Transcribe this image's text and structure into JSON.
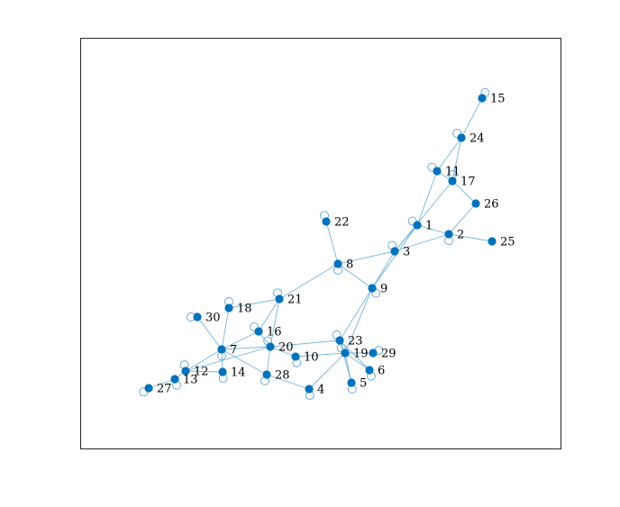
{
  "colors": {
    "node": "#0072BD",
    "edge": "#75b4dd",
    "loop": "#5fa3d4",
    "frame": "#262626",
    "background": "#ffffff"
  },
  "nodes": [
    {
      "id": "1",
      "label": "1"
    },
    {
      "id": "2",
      "label": "2"
    },
    {
      "id": "3",
      "label": "3"
    },
    {
      "id": "4",
      "label": "4"
    },
    {
      "id": "5",
      "label": "5"
    },
    {
      "id": "6",
      "label": "6"
    },
    {
      "id": "7",
      "label": "7"
    },
    {
      "id": "8",
      "label": "8"
    },
    {
      "id": "9",
      "label": "9"
    },
    {
      "id": "10",
      "label": "10"
    },
    {
      "id": "11",
      "label": "11"
    },
    {
      "id": "12",
      "label": "12"
    },
    {
      "id": "13",
      "label": "13"
    },
    {
      "id": "14",
      "label": "14"
    },
    {
      "id": "15",
      "label": "15"
    },
    {
      "id": "16",
      "label": "16"
    },
    {
      "id": "17",
      "label": "17"
    },
    {
      "id": "18",
      "label": "18"
    },
    {
      "id": "19",
      "label": "19"
    },
    {
      "id": "20",
      "label": "20"
    },
    {
      "id": "21",
      "label": "21"
    },
    {
      "id": "22",
      "label": "22"
    },
    {
      "id": "23",
      "label": "23"
    },
    {
      "id": "24",
      "label": "24"
    },
    {
      "id": "25",
      "label": "25"
    },
    {
      "id": "26",
      "label": "26"
    },
    {
      "id": "27",
      "label": "27"
    },
    {
      "id": "28",
      "label": "28"
    },
    {
      "id": "29",
      "label": "29"
    },
    {
      "id": "30",
      "label": "30"
    }
  ],
  "edges": [
    [
      "15",
      "24"
    ],
    [
      "24",
      "11"
    ],
    [
      "24",
      "17"
    ],
    [
      "11",
      "1"
    ],
    [
      "11",
      "17"
    ],
    [
      "17",
      "26"
    ],
    [
      "17",
      "3"
    ],
    [
      "26",
      "2"
    ],
    [
      "1",
      "2"
    ],
    [
      "2",
      "25"
    ],
    [
      "2",
      "3"
    ],
    [
      "1",
      "3"
    ],
    [
      "1",
      "9"
    ],
    [
      "3",
      "8"
    ],
    [
      "3",
      "9"
    ],
    [
      "22",
      "8"
    ],
    [
      "8",
      "21"
    ],
    [
      "8",
      "9"
    ],
    [
      "9",
      "23"
    ],
    [
      "9",
      "19"
    ],
    [
      "21",
      "18"
    ],
    [
      "21",
      "16"
    ],
    [
      "21",
      "20"
    ],
    [
      "18",
      "7"
    ],
    [
      "16",
      "20"
    ],
    [
      "16",
      "7"
    ],
    [
      "30",
      "7"
    ],
    [
      "7",
      "20"
    ],
    [
      "7",
      "12"
    ],
    [
      "7",
      "14"
    ],
    [
      "7",
      "28"
    ],
    [
      "20",
      "23"
    ],
    [
      "20",
      "28"
    ],
    [
      "20",
      "12"
    ],
    [
      "20",
      "10"
    ],
    [
      "10",
      "19"
    ],
    [
      "23",
      "19"
    ],
    [
      "23",
      "6"
    ],
    [
      "19",
      "5"
    ],
    [
      "19",
      "6"
    ],
    [
      "19",
      "29"
    ],
    [
      "19",
      "4"
    ],
    [
      "28",
      "4"
    ],
    [
      "12",
      "14"
    ],
    [
      "12",
      "13"
    ],
    [
      "13",
      "27"
    ],
    [
      "23",
      "5"
    ]
  ],
  "self_loops": [
    "1",
    "2",
    "3",
    "4",
    "5",
    "6",
    "7",
    "8",
    "9",
    "10",
    "11",
    "12",
    "13",
    "14",
    "15",
    "16",
    "17",
    "18",
    "19",
    "20",
    "21",
    "22",
    "23",
    "24",
    "25",
    "26",
    "27",
    "28",
    "29",
    "30"
  ]
}
